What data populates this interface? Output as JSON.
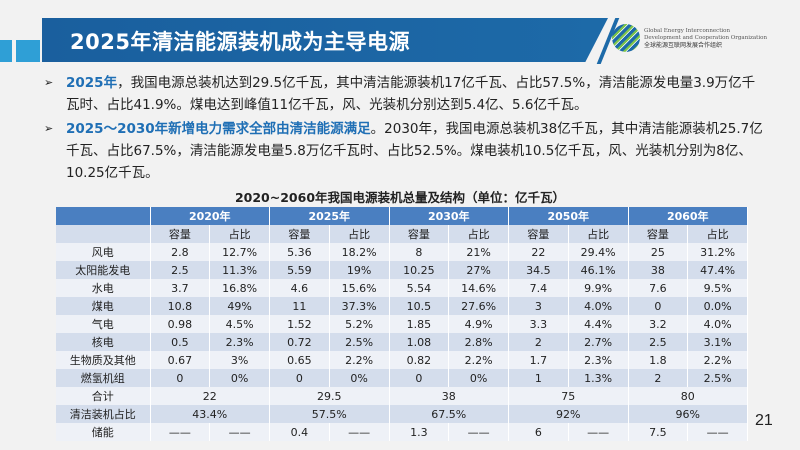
{
  "header": {
    "title": "2025年清洁能源装机成为主导电源"
  },
  "logo": {
    "en_line1": "Global Energy Interconnection",
    "en_line2": "Development and Cooperation Organization",
    "cn": "全球能源互联网发展合作组织"
  },
  "bullets": [
    {
      "highlight": "2025年",
      "text": "，我国电源总装机达到29.5亿千瓦，其中清洁能源装机17亿千瓦、占比57.5%，清洁能源发电量3.9万亿千瓦时、占比41.9%。煤电达到峰值11亿千瓦，风、光装机分别达到5.4亿、5.6亿千瓦。"
    },
    {
      "highlight": "2025～2030年新增电力需求全部由清洁能源满足",
      "text": "。2030年，我国电源总装机38亿千瓦，其中清洁能源装机25.7亿千瓦、占比67.5%，清洁能源发电量5.8万亿千瓦时、占比52.5%。煤电装机10.5亿千瓦，风、光装机分别为8亿、10.25亿千瓦。"
    }
  ],
  "table": {
    "caption": "2020~2060年我国电源装机总量及结构（单位：亿千瓦）",
    "years": [
      "2020年",
      "2025年",
      "2030年",
      "2050年",
      "2060年"
    ],
    "subheaders": [
      "容量",
      "占比"
    ],
    "rows": [
      {
        "label": "风电",
        "cells": [
          "2.8",
          "12.7%",
          "5.36",
          "18.2%",
          "8",
          "21%",
          "22",
          "29.4%",
          "25",
          "31.2%"
        ]
      },
      {
        "label": "太阳能发电",
        "cells": [
          "2.5",
          "11.3%",
          "5.59",
          "19%",
          "10.25",
          "27%",
          "34.5",
          "46.1%",
          "38",
          "47.4%"
        ]
      },
      {
        "label": "水电",
        "cells": [
          "3.7",
          "16.8%",
          "4.6",
          "15.6%",
          "5.54",
          "14.6%",
          "7.4",
          "9.9%",
          "7.6",
          "9.5%"
        ]
      },
      {
        "label": "煤电",
        "cells": [
          "10.8",
          "49%",
          "11",
          "37.3%",
          "10.5",
          "27.6%",
          "3",
          "4.0%",
          "0",
          "0.0%"
        ]
      },
      {
        "label": "气电",
        "cells": [
          "0.98",
          "4.5%",
          "1.52",
          "5.2%",
          "1.85",
          "4.9%",
          "3.3",
          "4.4%",
          "3.2",
          "4.0%"
        ]
      },
      {
        "label": "核电",
        "cells": [
          "0.5",
          "2.3%",
          "0.72",
          "2.5%",
          "1.08",
          "2.8%",
          "2",
          "2.7%",
          "2.5",
          "3.1%"
        ]
      },
      {
        "label": "生物质及其他",
        "cells": [
          "0.67",
          "3%",
          "0.65",
          "2.2%",
          "0.82",
          "2.2%",
          "1.7",
          "2.3%",
          "1.8",
          "2.2%"
        ]
      },
      {
        "label": "燃氢机组",
        "cells": [
          "0",
          "0%",
          "0",
          "0%",
          "0",
          "0%",
          "1",
          "1.3%",
          "2",
          "2.5%"
        ]
      }
    ],
    "total": {
      "label": "合计",
      "values": [
        "22",
        "29.5",
        "38",
        "75",
        "80"
      ]
    },
    "clean_share": {
      "label": "清洁装机占比",
      "values": [
        "43.4%",
        "57.5%",
        "67.5%",
        "92%",
        "96%"
      ]
    },
    "storage": {
      "label": "储能",
      "cells": [
        "——",
        "——",
        "0.4",
        "——",
        "1.3",
        "——",
        "6",
        "——",
        "7.5",
        "——"
      ]
    }
  },
  "page_number": "21"
}
